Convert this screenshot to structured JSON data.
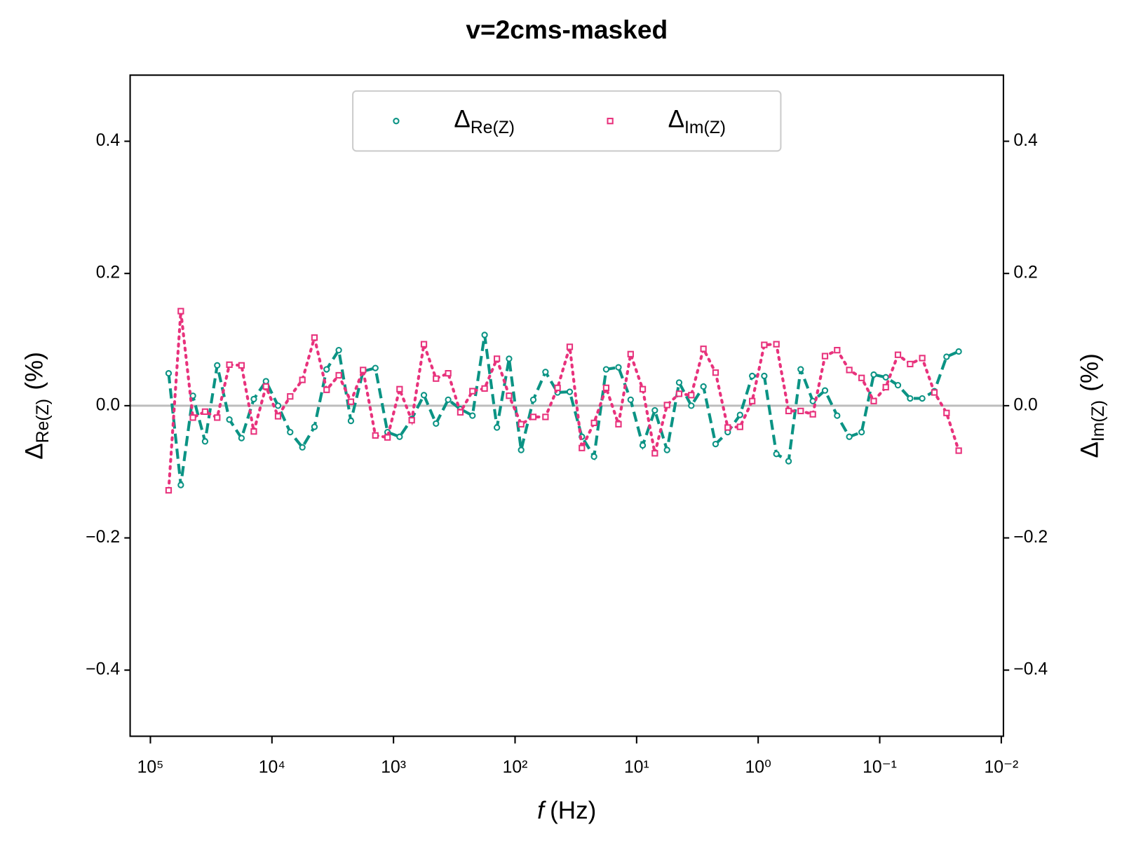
{
  "chart_data": {
    "type": "line",
    "title": "v=2cms-masked",
    "xlabel": {
      "symbol": "f",
      "unit": "(Hz)"
    },
    "ylabel": {
      "symbol": "Δ",
      "subscript": "Re(Z)",
      "unit": "(%)"
    },
    "y2label": {
      "symbol": "Δ",
      "subscript": "Im(Z)",
      "unit": "(%)"
    },
    "x_scale": "log",
    "xlim": [
      146800,
      0.0096
    ],
    "xticks": [
      {
        "value": 100000,
        "label": "10⁵"
      },
      {
        "value": 10000,
        "label": "10⁴"
      },
      {
        "value": 1000,
        "label": "10³"
      },
      {
        "value": 100,
        "label": "10²"
      },
      {
        "value": 10,
        "label": "10¹"
      },
      {
        "value": 1,
        "label": "10⁰"
      },
      {
        "value": 0.1,
        "label": "10⁻¹"
      },
      {
        "value": 0.01,
        "label": "10⁻²"
      }
    ],
    "ylim": [
      -0.5,
      0.5
    ],
    "yticks": [
      {
        "value": -0.4,
        "label": "−0.4"
      },
      {
        "value": -0.2,
        "label": "−0.2"
      },
      {
        "value": 0,
        "label": "0.0"
      },
      0.2,
      0.4
    ],
    "y2lim": [
      -0.5,
      0.5
    ],
    "y2ticks": [
      {
        "value": -0.4,
        "label": "−0.4"
      },
      {
        "value": -0.2,
        "label": "−0.2"
      },
      {
        "value": 0,
        "label": "0.0"
      },
      0.2,
      0.4
    ],
    "reference_line": {
      "y": 0,
      "color": "#bdbdbd"
    },
    "legend": {
      "loc": "upper center",
      "columns": 2
    },
    "x": [
      70800,
      56200,
      44700,
      35500,
      28200,
      22400,
      17800,
      14100,
      11200,
      8910,
      7080,
      5620,
      4470,
      3550,
      2820,
      2240,
      1780,
      1410,
      1120,
      891,
      708,
      562,
      447,
      355,
      282,
      224,
      178,
      141,
      112,
      89.1,
      70.8,
      56.2,
      44.7,
      35.5,
      28.2,
      22.4,
      17.8,
      14.1,
      11.2,
      8.91,
      7.08,
      5.62,
      4.47,
      3.55,
      2.82,
      2.24,
      1.78,
      1.41,
      1.12,
      0.891,
      0.708,
      0.562,
      0.447,
      0.355,
      0.282,
      0.224,
      0.178,
      0.141,
      0.112,
      0.0891,
      0.0708,
      0.0562,
      0.0447,
      0.0355,
      0.0282,
      0.0224
    ],
    "series": [
      {
        "name": "Δ",
        "name_subscript": "Re(Z)",
        "color": "#0b9384",
        "marker": "circle",
        "line_style": "dashed",
        "axis": "y",
        "values": [
          0.049,
          -0.12,
          0.015,
          -0.054,
          0.061,
          -0.021,
          -0.049,
          0.01,
          0.037,
          0.0,
          -0.04,
          -0.063,
          -0.032,
          0.055,
          0.084,
          -0.023,
          0.052,
          0.057,
          -0.04,
          -0.047,
          -0.02,
          0.016,
          -0.027,
          0.009,
          -0.005,
          -0.015,
          0.107,
          -0.033,
          0.071,
          -0.067,
          0.009,
          0.051,
          0.02,
          0.021,
          -0.047,
          -0.077,
          0.055,
          0.058,
          0.009,
          -0.06,
          -0.007,
          -0.067,
          0.035,
          0.0,
          0.029,
          -0.058,
          -0.04,
          -0.014,
          0.045,
          0.045,
          -0.073,
          -0.084,
          0.055,
          0.007,
          0.023,
          -0.015,
          -0.047,
          -0.04,
          0.047,
          0.043,
          0.031,
          0.011,
          0.011,
          0.022,
          0.074,
          0.082
        ]
      },
      {
        "name": "Δ",
        "name_subscript": "Im(Z)",
        "color": "#e8327c",
        "marker": "square",
        "line_style": "dotted",
        "axis": "y2",
        "values": [
          -0.128,
          0.143,
          -0.018,
          -0.009,
          -0.018,
          0.062,
          0.061,
          -0.039,
          0.029,
          -0.016,
          0.014,
          0.039,
          0.103,
          0.024,
          0.046,
          0.006,
          0.054,
          -0.045,
          -0.048,
          0.025,
          -0.022,
          0.093,
          0.041,
          0.049,
          -0.01,
          0.022,
          0.026,
          0.071,
          0.015,
          -0.028,
          -0.017,
          -0.017,
          0.027,
          0.089,
          -0.064,
          -0.026,
          0.027,
          -0.028,
          0.078,
          0.025,
          -0.072,
          0.001,
          0.018,
          0.016,
          0.086,
          0.05,
          -0.033,
          -0.032,
          0.007,
          0.092,
          0.093,
          -0.008,
          -0.008,
          -0.013,
          0.075,
          0.084,
          0.054,
          0.042,
          0.007,
          0.028,
          0.077,
          0.063,
          0.072,
          0.02,
          -0.011,
          -0.068
        ]
      }
    ]
  }
}
